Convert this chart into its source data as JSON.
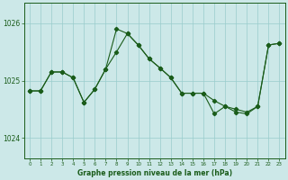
{
  "title": "Graphe pression niveau de la mer (hPa)",
  "background_color": "#cce8e8",
  "grid_color": "#99cccc",
  "line_color": "#1a5c1a",
  "ylim": [
    1023.65,
    1026.35
  ],
  "yticks": [
    1024,
    1025,
    1026
  ],
  "xlim": [
    -0.5,
    23.5
  ],
  "line1_x": [
    0,
    1,
    2,
    3,
    4,
    5,
    6,
    7,
    8,
    9,
    10,
    11,
    12,
    13,
    14,
    15,
    16,
    17,
    18,
    19,
    20,
    21,
    22,
    23
  ],
  "line1_y": [
    1024.82,
    1024.82,
    1025.15,
    1025.15,
    1025.05,
    1024.62,
    1024.85,
    1025.2,
    1025.9,
    1025.82,
    1025.62,
    1025.38,
    1025.22,
    1025.05,
    1024.78,
    1024.78,
    1024.78,
    1024.42,
    1024.55,
    1024.45,
    1024.42,
    1024.55,
    1025.62,
    1025.65
  ],
  "line2_x": [
    0,
    1,
    2,
    3,
    4,
    5,
    6,
    7,
    8,
    9,
    10,
    11,
    12,
    13,
    14,
    15,
    16,
    17,
    18,
    19,
    20,
    21,
    22,
    23
  ],
  "line2_y": [
    1024.82,
    1024.82,
    1025.15,
    1025.15,
    1025.05,
    1024.62,
    1024.85,
    1025.2,
    1025.5,
    1025.82,
    1025.62,
    1025.38,
    1025.22,
    1025.05,
    1024.78,
    1024.78,
    1024.78,
    1024.65,
    1024.55,
    1024.5,
    1024.45,
    1024.55,
    1025.62,
    1025.65
  ]
}
